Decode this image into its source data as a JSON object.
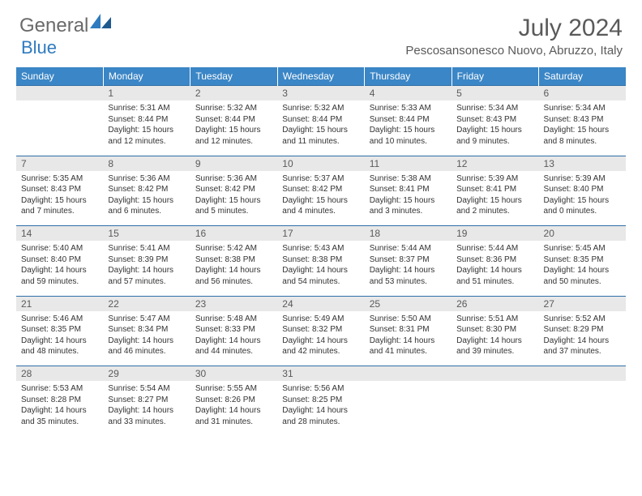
{
  "logo": {
    "text1": "General",
    "text2": "Blue"
  },
  "title": "July 2024",
  "location": "Pescosansonesco Nuovo, Abruzzo, Italy",
  "header_bg": "#3b86c6",
  "daynum_bg": "#e8e8e8",
  "border_color": "#2f6fa8",
  "days": [
    "Sunday",
    "Monday",
    "Tuesday",
    "Wednesday",
    "Thursday",
    "Friday",
    "Saturday"
  ],
  "weeks": [
    [
      null,
      {
        "n": "1",
        "sr": "5:31 AM",
        "ss": "8:44 PM",
        "dl": "15 hours and 12 minutes."
      },
      {
        "n": "2",
        "sr": "5:32 AM",
        "ss": "8:44 PM",
        "dl": "15 hours and 12 minutes."
      },
      {
        "n": "3",
        "sr": "5:32 AM",
        "ss": "8:44 PM",
        "dl": "15 hours and 11 minutes."
      },
      {
        "n": "4",
        "sr": "5:33 AM",
        "ss": "8:44 PM",
        "dl": "15 hours and 10 minutes."
      },
      {
        "n": "5",
        "sr": "5:34 AM",
        "ss": "8:43 PM",
        "dl": "15 hours and 9 minutes."
      },
      {
        "n": "6",
        "sr": "5:34 AM",
        "ss": "8:43 PM",
        "dl": "15 hours and 8 minutes."
      }
    ],
    [
      {
        "n": "7",
        "sr": "5:35 AM",
        "ss": "8:43 PM",
        "dl": "15 hours and 7 minutes."
      },
      {
        "n": "8",
        "sr": "5:36 AM",
        "ss": "8:42 PM",
        "dl": "15 hours and 6 minutes."
      },
      {
        "n": "9",
        "sr": "5:36 AM",
        "ss": "8:42 PM",
        "dl": "15 hours and 5 minutes."
      },
      {
        "n": "10",
        "sr": "5:37 AM",
        "ss": "8:42 PM",
        "dl": "15 hours and 4 minutes."
      },
      {
        "n": "11",
        "sr": "5:38 AM",
        "ss": "8:41 PM",
        "dl": "15 hours and 3 minutes."
      },
      {
        "n": "12",
        "sr": "5:39 AM",
        "ss": "8:41 PM",
        "dl": "15 hours and 2 minutes."
      },
      {
        "n": "13",
        "sr": "5:39 AM",
        "ss": "8:40 PM",
        "dl": "15 hours and 0 minutes."
      }
    ],
    [
      {
        "n": "14",
        "sr": "5:40 AM",
        "ss": "8:40 PM",
        "dl": "14 hours and 59 minutes."
      },
      {
        "n": "15",
        "sr": "5:41 AM",
        "ss": "8:39 PM",
        "dl": "14 hours and 57 minutes."
      },
      {
        "n": "16",
        "sr": "5:42 AM",
        "ss": "8:38 PM",
        "dl": "14 hours and 56 minutes."
      },
      {
        "n": "17",
        "sr": "5:43 AM",
        "ss": "8:38 PM",
        "dl": "14 hours and 54 minutes."
      },
      {
        "n": "18",
        "sr": "5:44 AM",
        "ss": "8:37 PM",
        "dl": "14 hours and 53 minutes."
      },
      {
        "n": "19",
        "sr": "5:44 AM",
        "ss": "8:36 PM",
        "dl": "14 hours and 51 minutes."
      },
      {
        "n": "20",
        "sr": "5:45 AM",
        "ss": "8:35 PM",
        "dl": "14 hours and 50 minutes."
      }
    ],
    [
      {
        "n": "21",
        "sr": "5:46 AM",
        "ss": "8:35 PM",
        "dl": "14 hours and 48 minutes."
      },
      {
        "n": "22",
        "sr": "5:47 AM",
        "ss": "8:34 PM",
        "dl": "14 hours and 46 minutes."
      },
      {
        "n": "23",
        "sr": "5:48 AM",
        "ss": "8:33 PM",
        "dl": "14 hours and 44 minutes."
      },
      {
        "n": "24",
        "sr": "5:49 AM",
        "ss": "8:32 PM",
        "dl": "14 hours and 42 minutes."
      },
      {
        "n": "25",
        "sr": "5:50 AM",
        "ss": "8:31 PM",
        "dl": "14 hours and 41 minutes."
      },
      {
        "n": "26",
        "sr": "5:51 AM",
        "ss": "8:30 PM",
        "dl": "14 hours and 39 minutes."
      },
      {
        "n": "27",
        "sr": "5:52 AM",
        "ss": "8:29 PM",
        "dl": "14 hours and 37 minutes."
      }
    ],
    [
      {
        "n": "28",
        "sr": "5:53 AM",
        "ss": "8:28 PM",
        "dl": "14 hours and 35 minutes."
      },
      {
        "n": "29",
        "sr": "5:54 AM",
        "ss": "8:27 PM",
        "dl": "14 hours and 33 minutes."
      },
      {
        "n": "30",
        "sr": "5:55 AM",
        "ss": "8:26 PM",
        "dl": "14 hours and 31 minutes."
      },
      {
        "n": "31",
        "sr": "5:56 AM",
        "ss": "8:25 PM",
        "dl": "14 hours and 28 minutes."
      },
      null,
      null,
      null
    ]
  ],
  "labels": {
    "sunrise": "Sunrise: ",
    "sunset": "Sunset: ",
    "daylight": "Daylight: "
  }
}
